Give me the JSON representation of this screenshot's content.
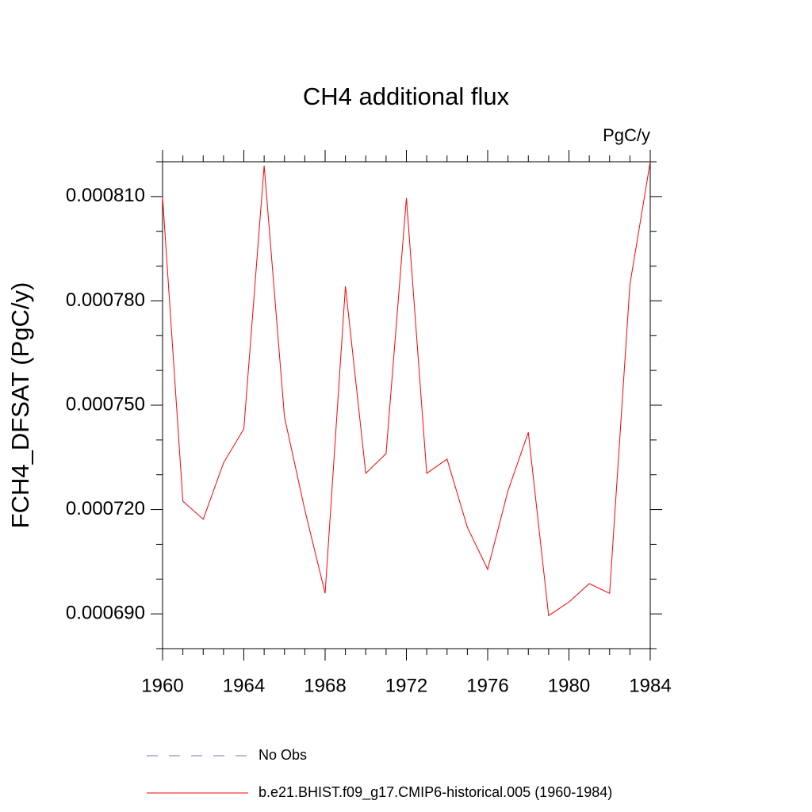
{
  "chart_data": {
    "type": "line",
    "title": "CH4 additional flux",
    "units": "PgC/y",
    "y_label": "FCH4_DFSAT  (PgC/y)",
    "x": [
      1960,
      1961,
      1962,
      1963,
      1964,
      1965,
      1966,
      1967,
      1968,
      1969,
      1970,
      1971,
      1972,
      1973,
      1974,
      1975,
      1976,
      1977,
      1978,
      1979,
      1980,
      1981,
      1982,
      1983,
      1984
    ],
    "series": [
      {
        "name": "No Obs",
        "color": "#7070c0",
        "dash": "dashed",
        "values": [
          null,
          null,
          null,
          null,
          null,
          null,
          null,
          null,
          null,
          null,
          null,
          null,
          null,
          null,
          null,
          null,
          null,
          null,
          null,
          null,
          null,
          null,
          null,
          null,
          null
        ]
      },
      {
        "name": "b.e21.BHIST.f09_g17.CMIP6-historical.005 (1960-1984)",
        "color": "#ff0000",
        "dash": "solid",
        "values": [
          0.00081,
          0.0007224,
          0.0007172,
          0.0007334,
          0.0007432,
          0.0008189,
          0.0007466,
          0.0007199,
          0.0006959,
          0.0007842,
          0.0007304,
          0.0007361,
          0.0008096,
          0.0007304,
          0.0007345,
          0.0007149,
          0.0007028,
          0.0007254,
          0.0007422,
          0.0006895,
          0.0006934,
          0.0006987,
          0.0006959,
          0.0007847,
          0.00082
        ]
      }
    ],
    "xlim": [
      1960,
      1984
    ],
    "xticks": [
      1960,
      1964,
      1968,
      1972,
      1976,
      1980,
      1984
    ],
    "ylim": [
      0.00068,
      0.00082
    ],
    "yticks": [
      {
        "value": 0.00069,
        "label": "0.000690"
      },
      {
        "value": 0.00072,
        "label": "0.000720"
      },
      {
        "value": 0.00075,
        "label": "0.000750"
      },
      {
        "value": 0.00078,
        "label": "0.000780"
      },
      {
        "value": 0.00081,
        "label": "0.000810"
      }
    ],
    "yminorticks": [
      0.00068,
      0.0007,
      0.00071,
      0.00073,
      0.00074,
      0.00076,
      0.00077,
      0.00079,
      0.0008,
      0.00082
    ]
  }
}
